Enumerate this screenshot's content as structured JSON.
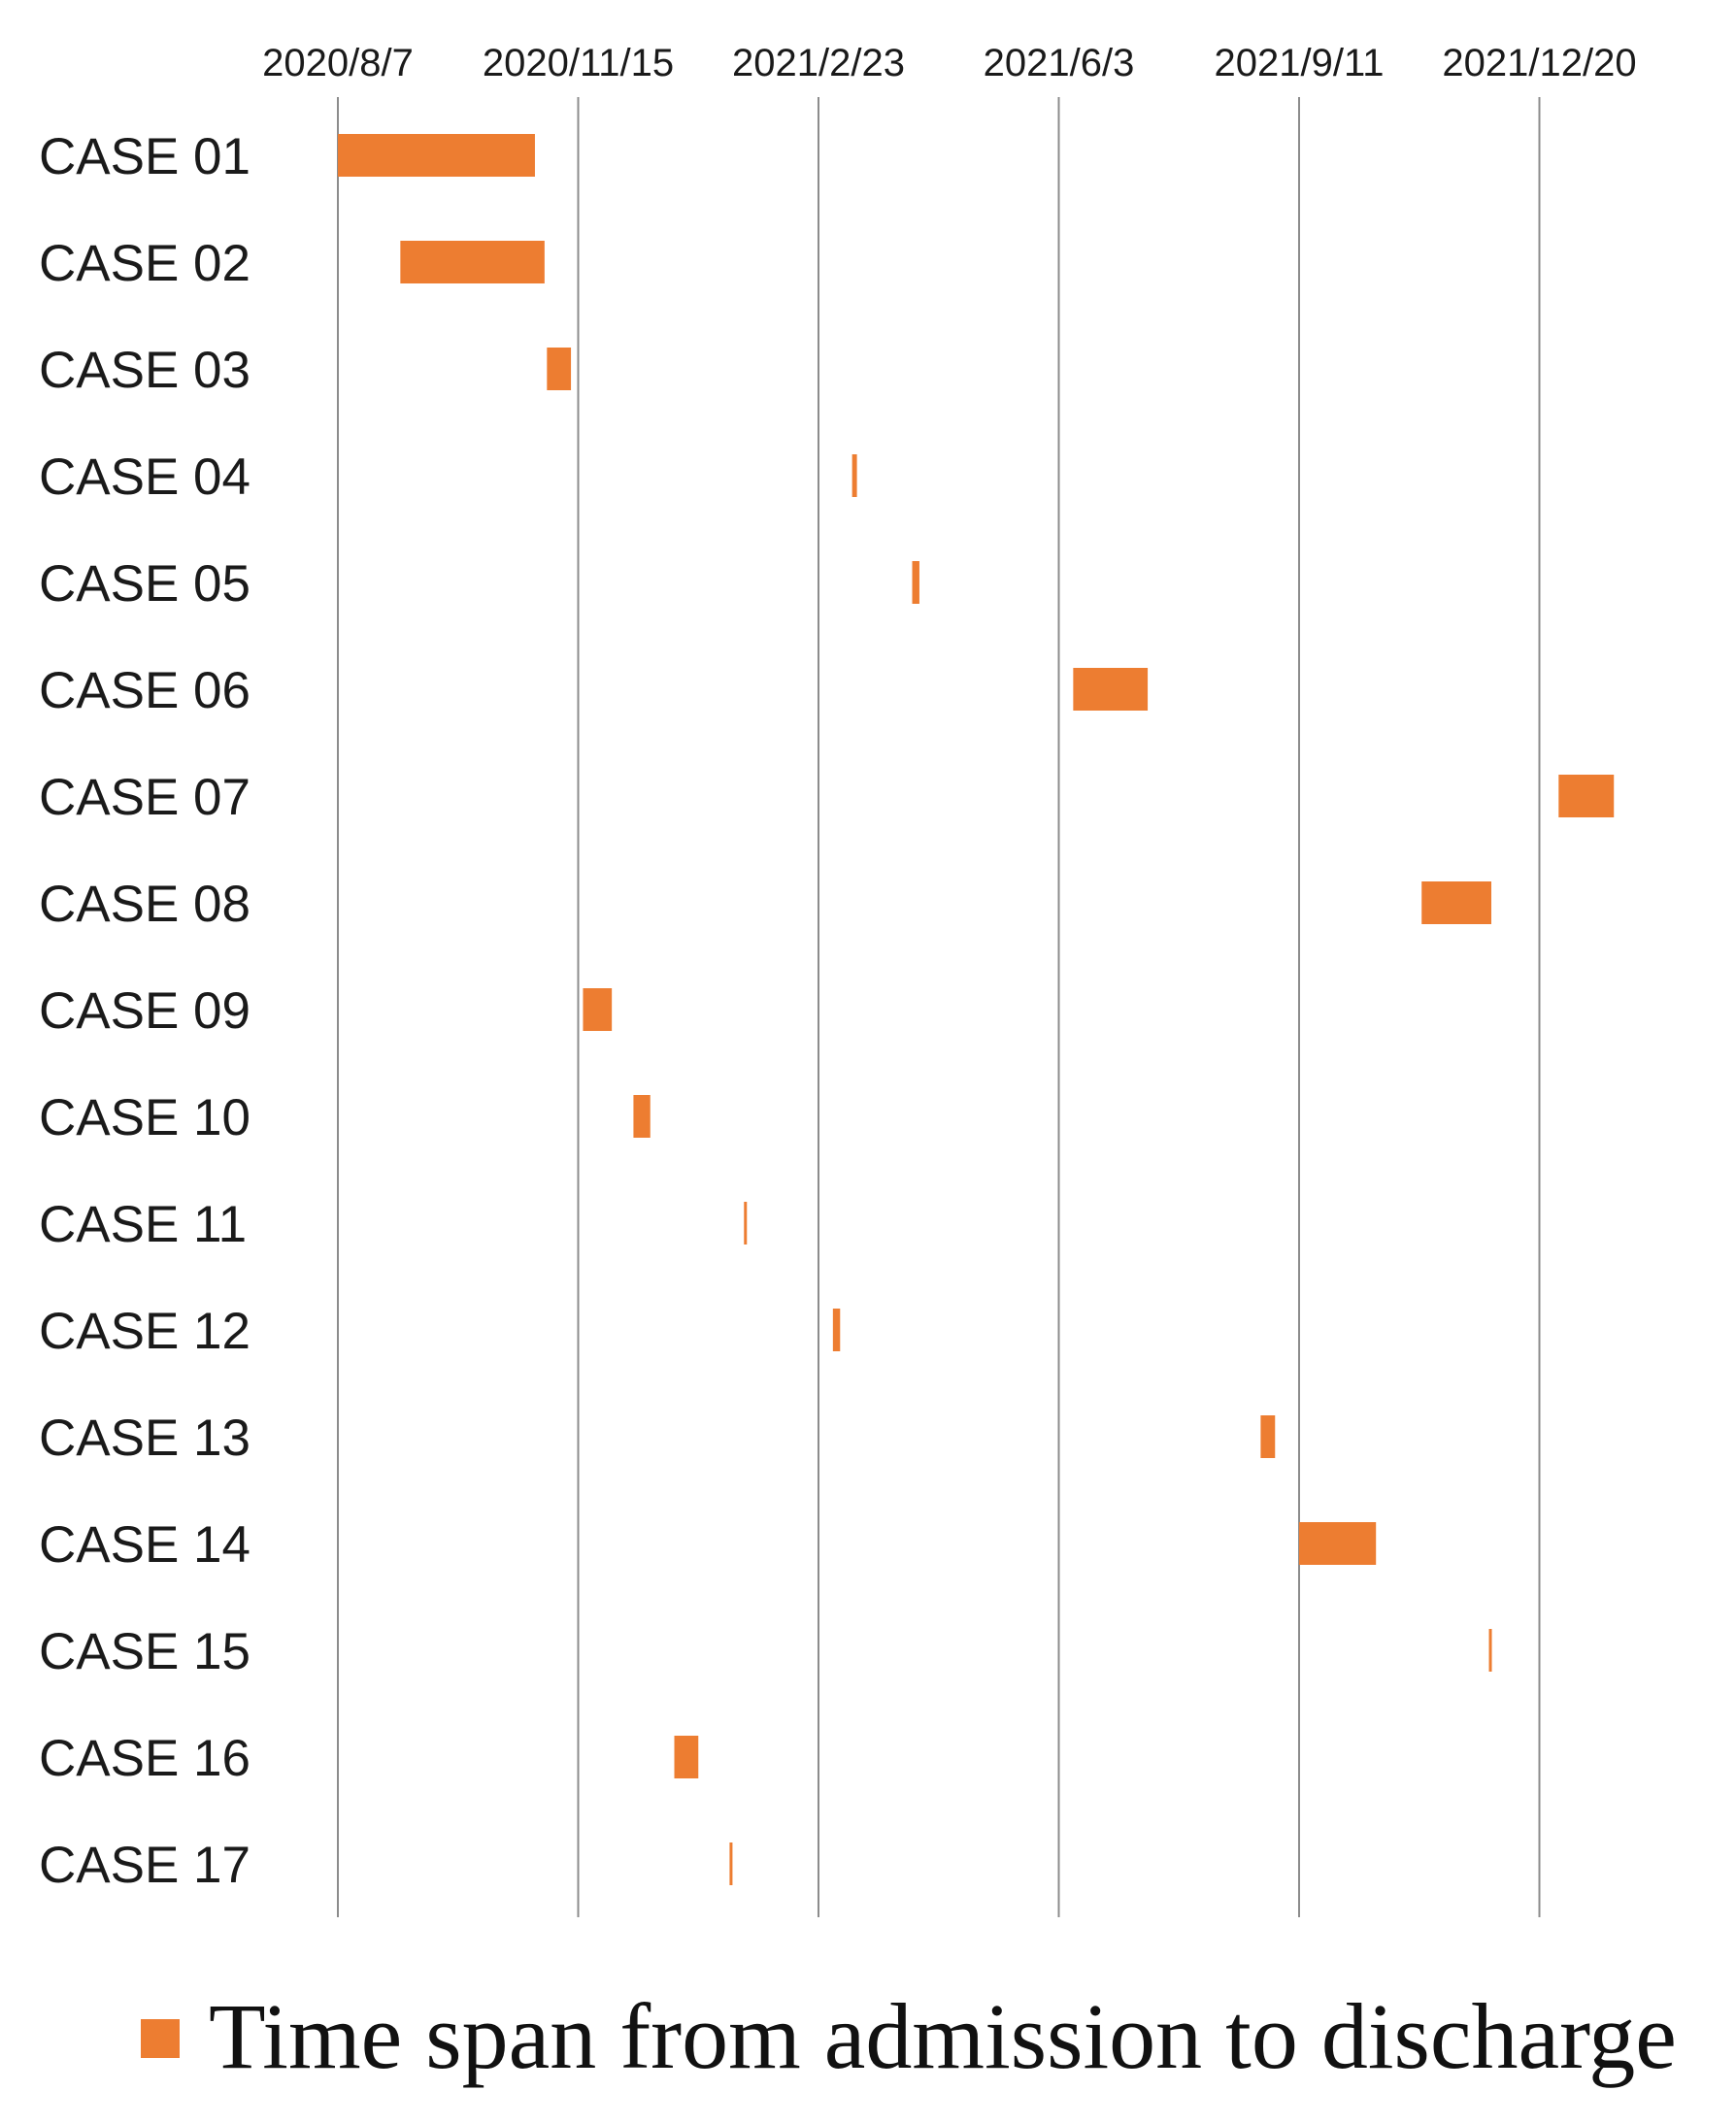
{
  "chart_data": {
    "type": "bar",
    "orientation": "horizontal-range",
    "x_axis": {
      "position": "top",
      "tick_labels": [
        "2020/8/7",
        "2020/11/15",
        "2021/2/23",
        "2021/6/3",
        "2021/9/11",
        "2021/12/20"
      ],
      "range": [
        "2020/8/7",
        "2022/3/30"
      ]
    },
    "grid": "vertical",
    "categories": [
      "CASE 01",
      "CASE 02",
      "CASE 03",
      "CASE 04",
      "CASE 05",
      "CASE 06",
      "CASE 07",
      "CASE 08",
      "CASE 09",
      "CASE 10",
      "CASE 11",
      "CASE 12",
      "CASE 13",
      "CASE 14",
      "CASE 15",
      "CASE 16",
      "CASE 17"
    ],
    "series": [
      {
        "name": "Time span from admission to discharge",
        "color": "#ED7D31",
        "ranges": [
          [
            "2020/8/7",
            "2020/10/28"
          ],
          [
            "2020/9/2",
            "2020/11/1"
          ],
          [
            "2020/11/2",
            "2020/11/12"
          ],
          [
            "2021/3/9",
            "2021/3/11"
          ],
          [
            "2021/4/3",
            "2021/4/6"
          ],
          [
            "2021/6/9",
            "2021/7/10"
          ],
          [
            "2021/12/28",
            "2022/1/20"
          ],
          [
            "2021/11/1",
            "2021/11/30"
          ],
          [
            "2020/11/17",
            "2020/11/29"
          ],
          [
            "2020/12/8",
            "2020/12/15"
          ],
          [
            "2021/1/23",
            "2021/1/24"
          ],
          [
            "2021/3/1",
            "2021/3/4"
          ],
          [
            "2021/8/26",
            "2021/9/1"
          ],
          [
            "2021/9/11",
            "2021/10/13"
          ],
          [
            "2021/11/29",
            "2021/11/30"
          ],
          [
            "2020/12/25",
            "2021/1/4"
          ],
          [
            "2021/1/17",
            "2021/1/18"
          ]
        ]
      }
    ],
    "legend": {
      "placement": "bottom",
      "entries": [
        "Time span from admission to discharge"
      ]
    }
  }
}
